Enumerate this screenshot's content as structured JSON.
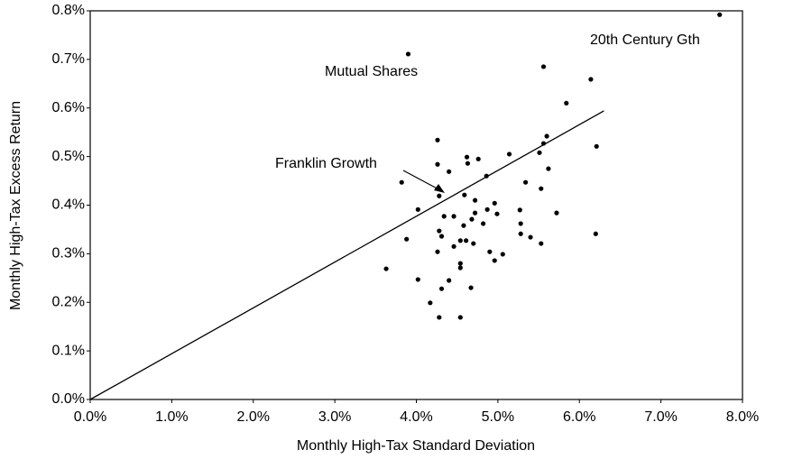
{
  "chart_data": {
    "type": "scatter",
    "x_label": "Monthly High-Tax Standard Deviation",
    "y_label": "Monthly High-Tax Excess Return",
    "annotations": [
      "Mutual Shares",
      "20th Century Gth",
      "Franklin Growth"
    ],
    "color": "#000000",
    "xlim": [
      0,
      8
    ],
    "ylim": [
      0,
      0.8
    ],
    "xticks": [
      {
        "value": 0,
        "label": "0.0%"
      },
      {
        "value": 1,
        "label": "1.0%"
      },
      {
        "value": 2,
        "label": "2.0%"
      },
      {
        "value": 3,
        "label": "3.0%"
      },
      {
        "value": 4,
        "label": "4.0%"
      },
      {
        "value": 5,
        "label": "5.0%"
      },
      {
        "value": 6,
        "label": "6.0%"
      },
      {
        "value": 7,
        "label": "7.0%"
      },
      {
        "value": 8,
        "label": "8.0%"
      }
    ],
    "yticks": [
      {
        "value": 0,
        "label": "0.0%"
      },
      {
        "value": 0.1,
        "label": "0.1%"
      },
      {
        "value": 0.2,
        "label": "0.2%"
      },
      {
        "value": 0.3,
        "label": "0.3%"
      },
      {
        "value": 0.4,
        "label": "0.4%"
      },
      {
        "value": 0.5,
        "label": "0.5%"
      },
      {
        "value": 0.6,
        "label": "0.6%"
      },
      {
        "value": 0.7,
        "label": "0.7%"
      },
      {
        "value": 0.8,
        "label": "0.8%"
      }
    ],
    "grid": false,
    "x": [
      7.72,
      3.9,
      5.56,
      6.14,
      5.84,
      6.21,
      4.26,
      5.6,
      5.56,
      5.51,
      5.14,
      4.62,
      4.76,
      4.26,
      4.63,
      5.62,
      4.4,
      4.86,
      3.82,
      5.34,
      5.53,
      4.28,
      4.59,
      4.72,
      4.96,
      4.02,
      5.27,
      4.87,
      4.99,
      5.72,
      4.34,
      4.46,
      4.72,
      4.68,
      4.82,
      4.58,
      5.28,
      4.28,
      4.31,
      5.28,
      6.2,
      3.88,
      4.54,
      4.61,
      5.4,
      5.53,
      4.7,
      4.46,
      4.26,
      4.9,
      5.06,
      4.96,
      4.54,
      4.54,
      3.63,
      4.02,
      4.4,
      4.31,
      4.67,
      4.17,
      4.28,
      4.54
    ],
    "values": [
      0.792,
      0.711,
      0.685,
      0.659,
      0.61,
      0.521,
      0.534,
      0.542,
      0.527,
      0.508,
      0.505,
      0.499,
      0.495,
      0.484,
      0.486,
      0.475,
      0.469,
      0.46,
      0.447,
      0.447,
      0.434,
      0.419,
      0.421,
      0.41,
      0.404,
      0.391,
      0.39,
      0.391,
      0.382,
      0.384,
      0.377,
      0.377,
      0.384,
      0.371,
      0.362,
      0.358,
      0.362,
      0.347,
      0.336,
      0.341,
      0.341,
      0.33,
      0.327,
      0.327,
      0.334,
      0.321,
      0.321,
      0.315,
      0.304,
      0.304,
      0.299,
      0.286,
      0.28,
      0.271,
      0.269,
      0.247,
      0.245,
      0.228,
      0.23,
      0.199,
      0.169,
      0.169
    ],
    "line": {
      "x": [
        0,
        6.3
      ],
      "y": [
        0,
        0.594
      ]
    }
  }
}
